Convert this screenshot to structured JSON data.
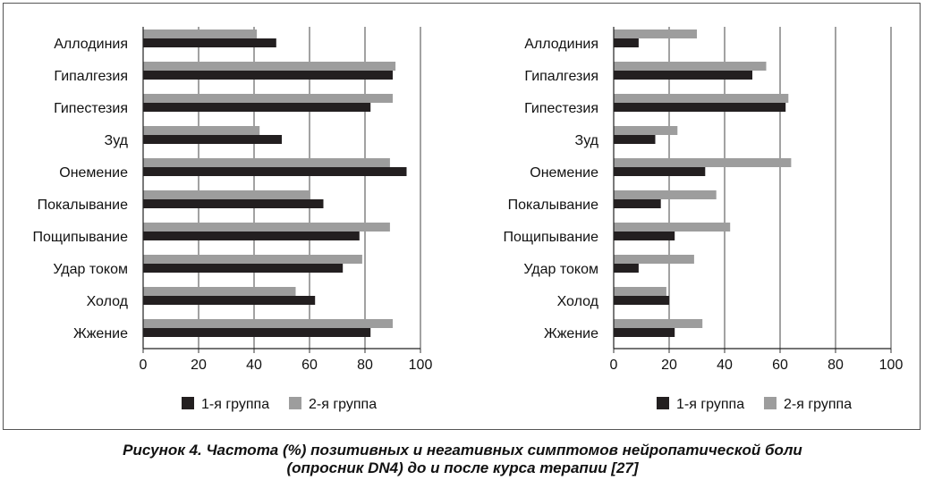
{
  "chart_data": [
    {
      "type": "bar",
      "orientation": "horizontal",
      "categories": [
        "Аллодиния",
        "Гипалгезия",
        "Гипестезия",
        "Зуд",
        "Онемение",
        "Покалывание",
        "Пощипывание",
        "Удар током",
        "Холод",
        "Жжение"
      ],
      "series": [
        {
          "name": "1-я группа",
          "color": "#231f20",
          "values": [
            48,
            90,
            82,
            50,
            95,
            65,
            78,
            72,
            62,
            82
          ]
        },
        {
          "name": "2-я группа",
          "color": "#9d9d9d",
          "values": [
            41,
            91,
            90,
            42,
            89,
            60,
            89,
            79,
            55,
            90
          ]
        }
      ],
      "xlim": [
        0,
        100
      ],
      "xticks": [
        "0",
        "20",
        "40",
        "60",
        "80",
        "100"
      ],
      "grid": "vertical",
      "legend_position": "bottom"
    },
    {
      "type": "bar",
      "orientation": "horizontal",
      "categories": [
        "Аллодиния",
        "Гипалгезия",
        "Гипестезия",
        "Зуд",
        "Онемение",
        "Покалывание",
        "Пощипывание",
        "Удар током",
        "Холод",
        "Жжение"
      ],
      "series": [
        {
          "name": "1-я группа",
          "color": "#231f20",
          "values": [
            9,
            50,
            62,
            15,
            33,
            17,
            22,
            9,
            20,
            22
          ]
        },
        {
          "name": "2-я группа",
          "color": "#9d9d9d",
          "values": [
            30,
            55,
            63,
            23,
            64,
            37,
            42,
            29,
            19,
            32
          ]
        }
      ],
      "xlim": [
        0,
        100
      ],
      "xticks": [
        "0",
        "20",
        "40",
        "60",
        "80",
        "100"
      ],
      "grid": "vertical",
      "legend_position": "bottom"
    }
  ],
  "caption": {
    "line1": "Рисунок 4. Частота (%) позитивных и негативных симптомов нейропатической боли",
    "line2": "(опросник DN4) до и после курса терапии [27]"
  }
}
